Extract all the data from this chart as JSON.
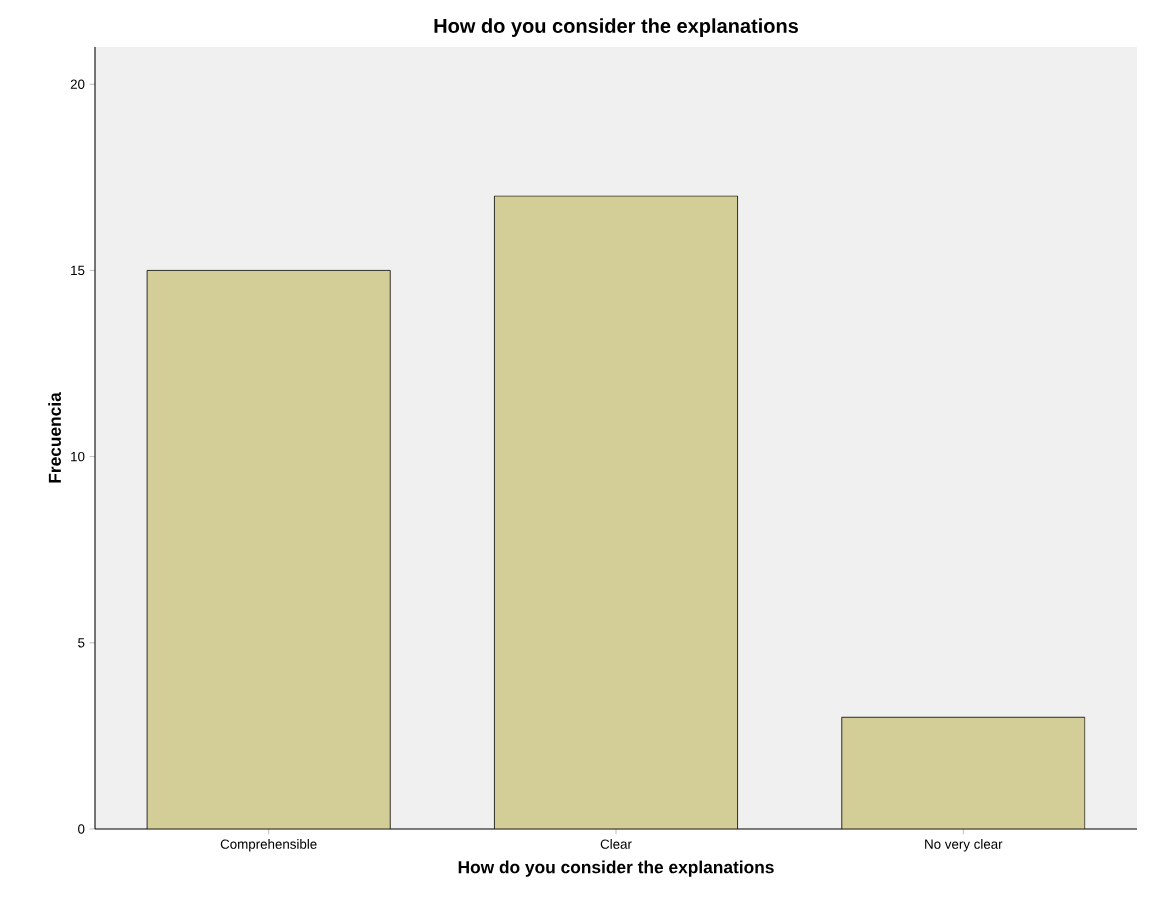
{
  "chart_data": {
    "type": "bar",
    "title": "How do you consider the explanations",
    "xlabel": "How do you consider the explanations",
    "ylabel": "Frecuencia",
    "categories": [
      "Comprehensible",
      "Clear",
      "No very clear"
    ],
    "values": [
      15,
      17,
      3
    ],
    "color": "#d3cd98",
    "ylim": [
      0,
      21
    ],
    "yticks": [
      0,
      5,
      10,
      15,
      20
    ],
    "grid": false
  }
}
